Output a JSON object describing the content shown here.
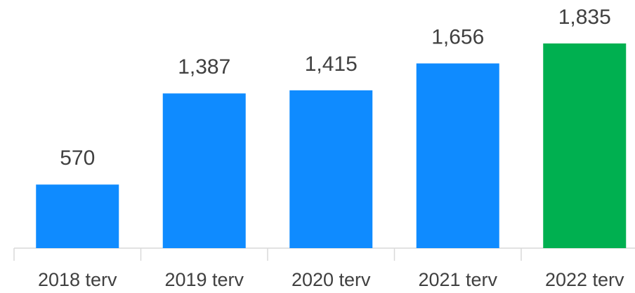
{
  "chart_data": {
    "type": "bar",
    "categories": [
      "2018 terv",
      "2019 terv",
      "2020 terv",
      "2021 terv",
      "2022 terv"
    ],
    "values": [
      570,
      1387,
      1415,
      1656,
      1835
    ],
    "value_labels": [
      "570",
      "1,387",
      "1,415",
      "1,656",
      "1,835"
    ],
    "colors": [
      "#0f8bff",
      "#0f8bff",
      "#0f8bff",
      "#0f8bff",
      "#00b050"
    ]
  }
}
